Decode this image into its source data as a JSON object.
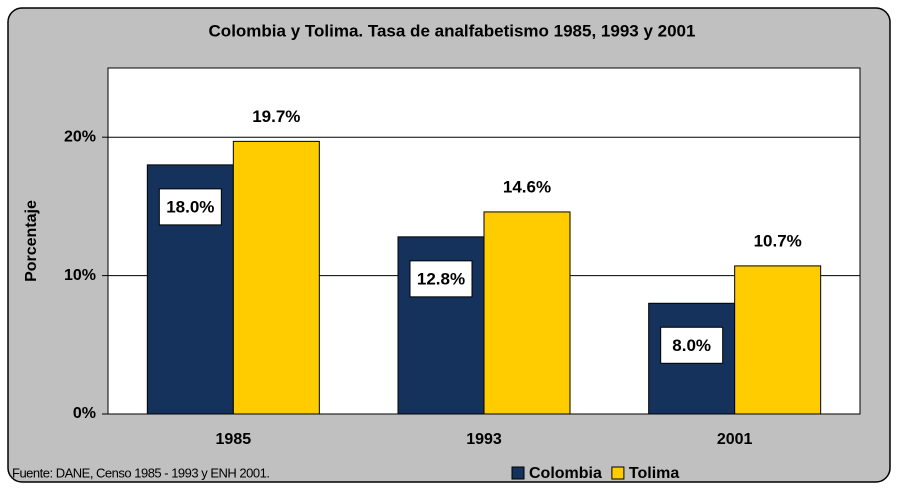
{
  "chart_data": {
    "type": "bar",
    "title": "Colombia y Tolima. Tasa de analfabetismo 1985, 1993 y 2001",
    "y_label": "Porcentaje",
    "source": "Fuente: DANE, Censo 1985 - 1993 y ENH 2001.",
    "categories": [
      "1985",
      "1993",
      "2001"
    ],
    "series": [
      {
        "name": "Colombia",
        "color": "#14325c",
        "values": [
          18.0,
          12.8,
          8.0
        ],
        "value_labels": [
          "18.0%",
          "12.8%",
          "8.0%"
        ]
      },
      {
        "name": "Tolima",
        "color": "#ffcc00",
        "values": [
          19.7,
          14.6,
          10.7
        ],
        "value_labels": [
          "19.7%",
          "14.6%",
          "10.7%"
        ]
      }
    ],
    "ylim": [
      0,
      25
    ],
    "yticks": [
      {
        "value": 0,
        "label": "0%"
      },
      {
        "value": 10,
        "label": "10%"
      },
      {
        "value": 20,
        "label": "20%"
      }
    ],
    "grid": true
  }
}
